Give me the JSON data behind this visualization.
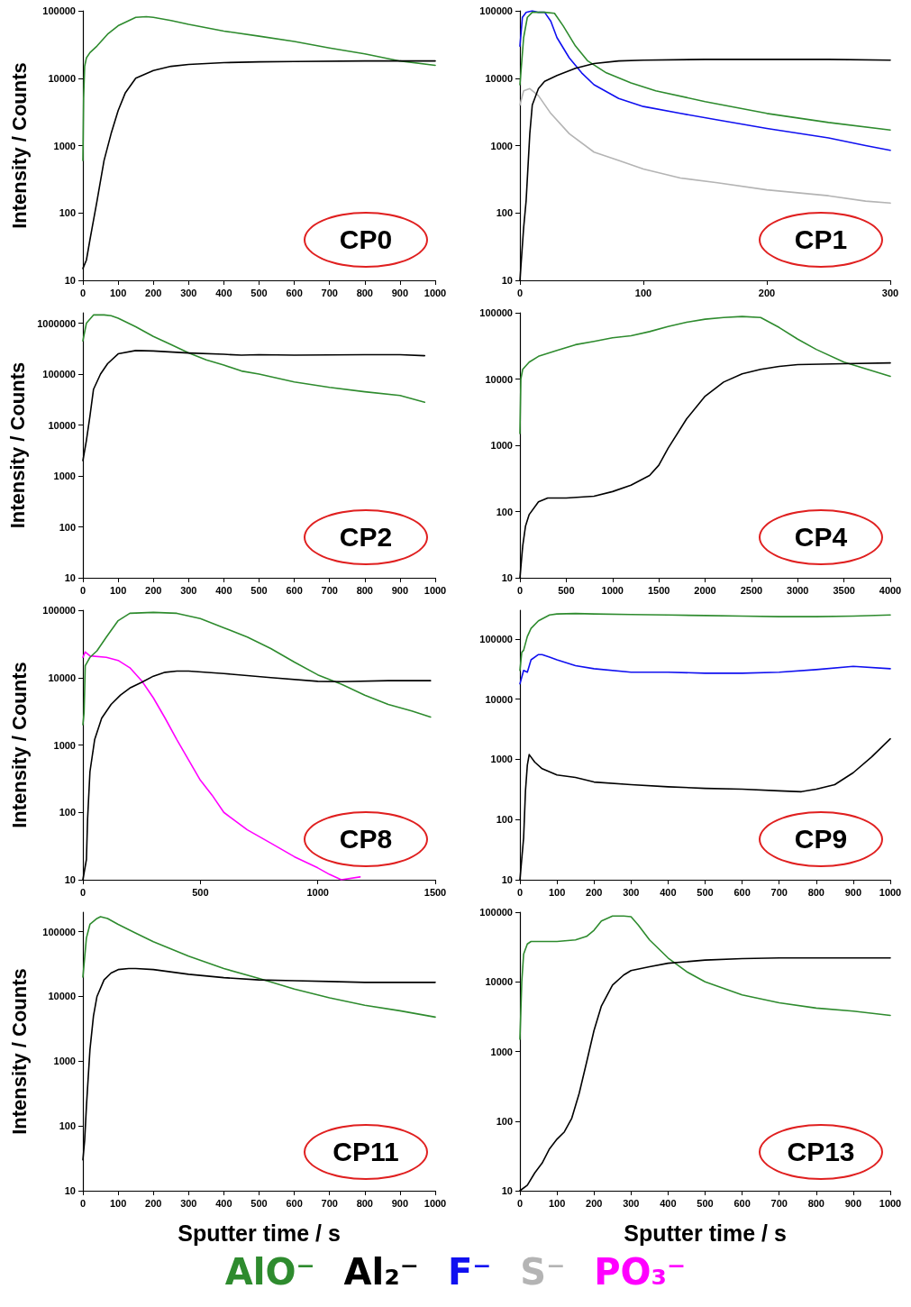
{
  "chart_data": [
    {
      "type": "line",
      "ylabel": "Intensity / Counts",
      "annotations": [
        "CP0"
      ],
      "log": "y",
      "grid": false,
      "marker": "none",
      "line_style": "solid",
      "tick_labels": true,
      "xlim": [
        0,
        1000
      ],
      "xticks": [
        0,
        100,
        200,
        300,
        400,
        500,
        600,
        700,
        800,
        900,
        1000
      ],
      "ylim": [
        10,
        100000
      ],
      "yticks": [
        10,
        100,
        1000,
        10000,
        100000
      ],
      "series": [
        {
          "name": "AlO⁻",
          "color": "#2e8b2e",
          "x": [
            0,
            2,
            5,
            10,
            20,
            40,
            70,
            100,
            150,
            180,
            200,
            250,
            300,
            400,
            500,
            600,
            700,
            800,
            900,
            1000
          ],
          "values": [
            600,
            5000,
            15000,
            20000,
            24000,
            30000,
            45000,
            60000,
            80000,
            82000,
            80000,
            72000,
            63000,
            50000,
            42000,
            35000,
            28000,
            23000,
            18000,
            15500
          ]
        },
        {
          "name": "Al₂⁻",
          "color": "#000000",
          "x": [
            0,
            10,
            20,
            40,
            60,
            80,
            100,
            120,
            150,
            200,
            250,
            300,
            400,
            500,
            600,
            800,
            1000
          ],
          "values": [
            15,
            20,
            40,
            150,
            600,
            1500,
            3300,
            6000,
            10000,
            13000,
            15000,
            16000,
            17000,
            17500,
            17700,
            18000,
            18000
          ]
        }
      ]
    },
    {
      "type": "line",
      "annotations": [
        "CP1"
      ],
      "log": "y",
      "grid": false,
      "marker": "none",
      "line_style": "solid",
      "tick_labels": true,
      "xlim": [
        0,
        300
      ],
      "xticks": [
        0,
        100,
        200,
        300
      ],
      "ylim": [
        10,
        100000
      ],
      "yticks": [
        10,
        100,
        1000,
        10000,
        100000
      ],
      "series": [
        {
          "name": "F⁻",
          "color": "#1010f0",
          "x": [
            0,
            2,
            5,
            10,
            15,
            20,
            25,
            30,
            40,
            50,
            60,
            80,
            100,
            130,
            160,
            200,
            250,
            280,
            300
          ],
          "values": [
            30000,
            80000,
            95000,
            100000,
            95000,
            95000,
            70000,
            40000,
            20000,
            12000,
            8000,
            5000,
            3800,
            3000,
            2400,
            1800,
            1300,
            1000,
            850
          ]
        },
        {
          "name": "S⁻",
          "color": "#b4b4b4",
          "x": [
            0,
            3,
            8,
            15,
            25,
            40,
            60,
            80,
            100,
            130,
            160,
            200,
            250,
            280,
            300
          ],
          "values": [
            4000,
            6500,
            7000,
            5500,
            3000,
            1500,
            800,
            600,
            450,
            330,
            280,
            220,
            180,
            150,
            140
          ]
        },
        {
          "color": "#2e8b2e",
          "x": [
            0,
            3,
            6,
            10,
            20,
            28,
            35,
            45,
            55,
            70,
            90,
            110,
            150,
            200,
            250,
            300
          ],
          "values": [
            8000,
            40000,
            80000,
            95000,
            95000,
            92000,
            60000,
            30000,
            18000,
            12000,
            8500,
            6500,
            4500,
            3000,
            2200,
            1700
          ]
        },
        {
          "color": "#000000",
          "x": [
            0,
            3,
            5,
            8,
            10,
            15,
            20,
            30,
            45,
            60,
            80,
            100,
            150,
            200,
            250,
            300
          ],
          "values": [
            10,
            60,
            150,
            1500,
            4000,
            7000,
            9000,
            11000,
            14000,
            16500,
            18000,
            18500,
            19000,
            19000,
            19000,
            18500
          ]
        }
      ]
    },
    {
      "type": "line",
      "ylabel": "Intensity / Counts",
      "annotations": [
        "CP2"
      ],
      "log": "y",
      "grid": false,
      "marker": "none",
      "line_style": "solid",
      "tick_labels": true,
      "xlim": [
        0,
        1000
      ],
      "xticks": [
        0,
        100,
        200,
        300,
        400,
        500,
        600,
        700,
        800,
        900,
        1000
      ],
      "ylim": [
        10,
        1600000
      ],
      "yticks": [
        10,
        100,
        1000,
        10000,
        100000,
        1000000
      ],
      "series": [
        {
          "color": "#2e8b2e",
          "x": [
            0,
            10,
            30,
            60,
            80,
            100,
            150,
            200,
            250,
            300,
            350,
            400,
            450,
            500,
            600,
            700,
            800,
            900,
            970
          ],
          "values": [
            450000,
            1000000,
            1450000,
            1450000,
            1400000,
            1250000,
            850000,
            550000,
            380000,
            260000,
            190000,
            150000,
            115000,
            100000,
            70000,
            55000,
            45000,
            38000,
            28000
          ]
        },
        {
          "color": "#000000",
          "x": [
            0,
            10,
            20,
            30,
            50,
            70,
            100,
            150,
            200,
            300,
            400,
            450,
            500,
            600,
            700,
            800,
            900,
            970
          ],
          "values": [
            2000,
            5000,
            15000,
            50000,
            100000,
            160000,
            250000,
            290000,
            285000,
            260000,
            245000,
            235000,
            240000,
            235000,
            238000,
            240000,
            240000,
            230000
          ]
        }
      ]
    },
    {
      "type": "line",
      "annotations": [
        "CP4"
      ],
      "log": "y",
      "grid": false,
      "marker": "none",
      "line_style": "solid",
      "tick_labels": true,
      "xlim": [
        0,
        4000
      ],
      "xticks": [
        0,
        500,
        1000,
        1500,
        2000,
        2500,
        3000,
        3500,
        4000
      ],
      "ylim": [
        10,
        100000
      ],
      "yticks": [
        10,
        100,
        1000,
        10000,
        100000
      ],
      "series": [
        {
          "color": "#2e8b2e",
          "x": [
            0,
            10,
            30,
            100,
            200,
            400,
            600,
            800,
            1000,
            1200,
            1400,
            1600,
            1800,
            2000,
            2200,
            2400,
            2600,
            2800,
            3000,
            3200,
            3500,
            4000
          ],
          "values": [
            1500,
            10000,
            14000,
            18000,
            22000,
            27000,
            33000,
            37000,
            42000,
            45000,
            52000,
            62000,
            72000,
            80000,
            85000,
            88000,
            85000,
            60000,
            40000,
            28000,
            18000,
            11000
          ]
        },
        {
          "color": "#000000",
          "x": [
            0,
            30,
            60,
            100,
            200,
            300,
            500,
            800,
            1000,
            1200,
            1400,
            1500,
            1600,
            1800,
            2000,
            2200,
            2400,
            2600,
            2800,
            3000,
            3500,
            4000
          ],
          "values": [
            10,
            30,
            60,
            90,
            140,
            160,
            160,
            170,
            200,
            250,
            350,
            500,
            900,
            2500,
            5500,
            9000,
            12000,
            14000,
            15500,
            16500,
            17000,
            17500
          ]
        }
      ]
    },
    {
      "type": "line",
      "ylabel": "Intensity / Counts",
      "annotations": [
        "CP8"
      ],
      "log": "y",
      "grid": false,
      "marker": "none",
      "line_style": "solid",
      "tick_labels": true,
      "xlim": [
        0,
        1500
      ],
      "xticks": [
        0,
        500,
        1000,
        1500
      ],
      "ylim": [
        10,
        100000
      ],
      "yticks": [
        10,
        100,
        1000,
        10000,
        100000
      ],
      "series": [
        {
          "name": "PO₃⁻",
          "color": "#ff00ff",
          "x": [
            0,
            10,
            30,
            100,
            150,
            200,
            250,
            300,
            350,
            400,
            450,
            500,
            550,
            600,
            700,
            800,
            900,
            1000,
            1050,
            1100,
            1180
          ],
          "values": [
            20000,
            24000,
            21000,
            20000,
            18000,
            14000,
            9000,
            5000,
            2500,
            1200,
            600,
            300,
            180,
            100,
            55,
            35,
            22,
            15,
            12,
            10,
            11
          ]
        },
        {
          "color": "#2e8b2e",
          "x": [
            0,
            5,
            10,
            30,
            60,
            100,
            150,
            200,
            300,
            400,
            500,
            600,
            700,
            800,
            900,
            1000,
            1100,
            1200,
            1300,
            1400,
            1480
          ],
          "values": [
            2000,
            3000,
            15000,
            20000,
            25000,
            40000,
            70000,
            90000,
            93000,
            90000,
            75000,
            55000,
            40000,
            27000,
            17000,
            11000,
            8000,
            5500,
            4000,
            3200,
            2600
          ]
        },
        {
          "color": "#000000",
          "x": [
            0,
            15,
            20,
            30,
            50,
            80,
            120,
            160,
            200,
            250,
            300,
            350,
            400,
            450,
            600,
            800,
            1000,
            1100,
            1300,
            1480
          ],
          "values": [
            10,
            20,
            80,
            400,
            1200,
            2500,
            4000,
            5500,
            7000,
            8500,
            10500,
            12000,
            12500,
            12500,
            11500,
            10000,
            8800,
            8700,
            9000,
            9000
          ]
        }
      ]
    },
    {
      "type": "line",
      "annotations": [
        "CP9"
      ],
      "log": "y",
      "grid": false,
      "marker": "none",
      "line_style": "solid",
      "tick_labels": true,
      "xlim": [
        0,
        1000
      ],
      "xticks": [
        0,
        100,
        200,
        300,
        400,
        500,
        600,
        700,
        800,
        900,
        1000
      ],
      "ylim": [
        10,
        300000
      ],
      "yticks": [
        10,
        100,
        1000,
        10000,
        100000
      ],
      "series": [
        {
          "color": "#2e8b2e",
          "x": [
            0,
            5,
            10,
            20,
            30,
            50,
            80,
            100,
            150,
            200,
            300,
            400,
            500,
            600,
            700,
            800,
            900,
            1000
          ],
          "values": [
            30000,
            60000,
            65000,
            110000,
            150000,
            200000,
            250000,
            260000,
            265000,
            260000,
            255000,
            250000,
            245000,
            240000,
            235000,
            235000,
            240000,
            250000
          ]
        },
        {
          "color": "#1010f0",
          "x": [
            0,
            10,
            20,
            30,
            50,
            60,
            80,
            100,
            150,
            200,
            300,
            400,
            500,
            600,
            700,
            800,
            900,
            1000
          ],
          "values": [
            18000,
            30000,
            28000,
            45000,
            55000,
            55000,
            50000,
            45000,
            36000,
            32000,
            28000,
            28000,
            27000,
            27000,
            28000,
            31000,
            35000,
            32000
          ]
        },
        {
          "color": "#000000",
          "x": [
            0,
            10,
            15,
            20,
            25,
            40,
            60,
            100,
            150,
            200,
            300,
            400,
            500,
            600,
            700,
            760,
            800,
            850,
            900,
            950,
            1000
          ],
          "values": [
            10,
            50,
            300,
            800,
            1200,
            900,
            700,
            550,
            500,
            420,
            380,
            350,
            330,
            320,
            300,
            290,
            320,
            380,
            600,
            1100,
            2200
          ]
        }
      ]
    },
    {
      "type": "line",
      "ylabel": "Intensity / Counts",
      "xlabel": "Sputter time / s",
      "annotations": [
        "CP11"
      ],
      "log": "y",
      "grid": false,
      "marker": "none",
      "line_style": "solid",
      "tick_labels": true,
      "xlim": [
        0,
        1000
      ],
      "xticks": [
        0,
        100,
        200,
        300,
        400,
        500,
        600,
        700,
        800,
        900,
        1000
      ],
      "ylim": [
        10,
        200000
      ],
      "yticks": [
        10,
        100,
        1000,
        10000,
        100000
      ],
      "series": [
        {
          "color": "#2e8b2e",
          "x": [
            0,
            10,
            20,
            40,
            50,
            70,
            100,
            150,
            200,
            300,
            400,
            500,
            600,
            700,
            800,
            900,
            1000
          ],
          "values": [
            20000,
            80000,
            130000,
            160000,
            170000,
            160000,
            130000,
            95000,
            70000,
            42000,
            27000,
            19000,
            13000,
            9500,
            7300,
            6000,
            4800
          ]
        },
        {
          "color": "#000000",
          "x": [
            0,
            5,
            10,
            20,
            30,
            40,
            60,
            80,
            100,
            130,
            150,
            200,
            300,
            400,
            500,
            600,
            700,
            800,
            900,
            1000
          ],
          "values": [
            30,
            60,
            200,
            1500,
            5000,
            10000,
            18000,
            23000,
            26000,
            27000,
            27000,
            26000,
            22000,
            19500,
            18000,
            17500,
            17000,
            16500,
            16500,
            16500
          ]
        }
      ]
    },
    {
      "type": "line",
      "xlabel": "Sputter time / s",
      "annotations": [
        "CP13"
      ],
      "log": "y",
      "grid": false,
      "marker": "none",
      "line_style": "solid",
      "tick_labels": true,
      "xlim": [
        0,
        1000
      ],
      "xticks": [
        0,
        100,
        200,
        300,
        400,
        500,
        600,
        700,
        800,
        900,
        1000
      ],
      "ylim": [
        10,
        100000
      ],
      "yticks": [
        10,
        100,
        1000,
        10000,
        100000
      ],
      "series": [
        {
          "color": "#2e8b2e",
          "x": [
            0,
            5,
            10,
            20,
            30,
            50,
            100,
            150,
            180,
            200,
            220,
            250,
            280,
            300,
            320,
            350,
            400,
            450,
            500,
            600,
            700,
            800,
            900,
            1000
          ],
          "values": [
            1500,
            10000,
            25000,
            35000,
            38000,
            38000,
            38000,
            40000,
            45000,
            55000,
            75000,
            88000,
            88000,
            86000,
            65000,
            40000,
            22000,
            14000,
            10000,
            6500,
            5000,
            4200,
            3800,
            3300
          ]
        },
        {
          "color": "#000000",
          "x": [
            0,
            20,
            40,
            60,
            80,
            100,
            120,
            140,
            160,
            180,
            200,
            220,
            250,
            280,
            300,
            350,
            400,
            500,
            600,
            700,
            800,
            900,
            1000
          ],
          "values": [
            10,
            12,
            18,
            25,
            40,
            55,
            70,
            110,
            250,
            700,
            2000,
            4500,
            9000,
            12500,
            14500,
            16500,
            18500,
            20500,
            21500,
            22000,
            22000,
            22000,
            22000
          ]
        }
      ]
    }
  ]
}
